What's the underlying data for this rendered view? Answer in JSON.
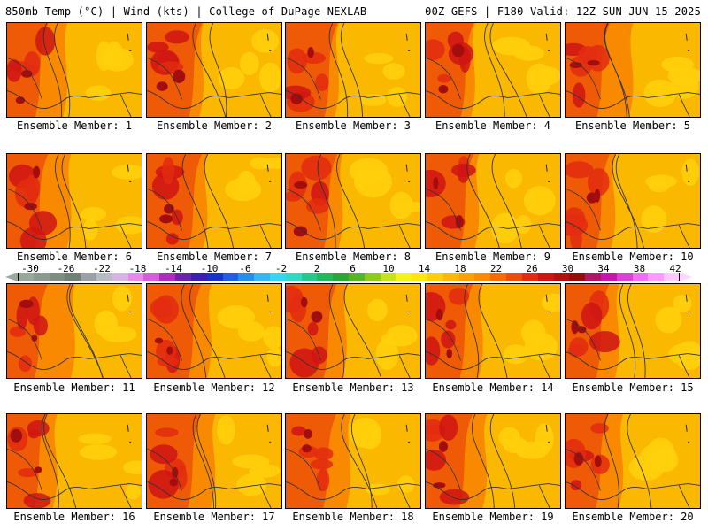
{
  "header": {
    "left": "850mb Temp (°C) | Wind (kts) | College of DuPage NEXLAB",
    "right": "00Z GEFS | F180 Valid: 12Z SUN JUN 15 2025"
  },
  "panels": [
    {
      "label": "Ensemble Member: 1"
    },
    {
      "label": "Ensemble Member: 2"
    },
    {
      "label": "Ensemble Member: 3"
    },
    {
      "label": "Ensemble Member: 4"
    },
    {
      "label": "Ensemble Member: 5"
    },
    {
      "label": "Ensemble Member: 6"
    },
    {
      "label": "Ensemble Member: 7"
    },
    {
      "label": "Ensemble Member: 8"
    },
    {
      "label": "Ensemble Member: 9"
    },
    {
      "label": "Ensemble Member: 10"
    },
    {
      "label": "Ensemble Member: 11"
    },
    {
      "label": "Ensemble Member: 12"
    },
    {
      "label": "Ensemble Member: 13"
    },
    {
      "label": "Ensemble Member: 14"
    },
    {
      "label": "Ensemble Member: 15"
    },
    {
      "label": "Ensemble Member: 16"
    },
    {
      "label": "Ensemble Member: 17"
    },
    {
      "label": "Ensemble Member: 18"
    },
    {
      "label": "Ensemble Member: 19"
    },
    {
      "label": "Ensemble Member: 20"
    }
  ],
  "colorbar": {
    "tick_labels": [
      "-30",
      "-26",
      "-22",
      "-18",
      "-14",
      "-10",
      "-6",
      "-2",
      "2",
      "6",
      "10",
      "14",
      "18",
      "22",
      "26",
      "30",
      "34",
      "38",
      "42"
    ],
    "colors": [
      "#97a89d",
      "#8a9a8f",
      "#7d8d82",
      "#6f8075",
      "#9aa0a6",
      "#b7bcc0",
      "#d9b3e6",
      "#e28be8",
      "#d85bdf",
      "#b12bc2",
      "#6a23b0",
      "#3b1fb3",
      "#1d32c9",
      "#1f60e0",
      "#2390ef",
      "#33b6f2",
      "#34d6f0",
      "#2fd9c4",
      "#25c98f",
      "#1fb85a",
      "#2aa73a",
      "#55b526",
      "#8ccd1c",
      "#c4e31a",
      "#f1f31b",
      "#ffe612",
      "#ffcf0b",
      "#ffb805",
      "#ff9f02",
      "#ff8a00",
      "#f86b00",
      "#ee4d06",
      "#e32b10",
      "#cf1414",
      "#b40f12",
      "#960b0b",
      "#b01668",
      "#c915ad",
      "#dd40da",
      "#f36ef0",
      "#ff9bff",
      "#ffc8ff"
    ]
  }
}
